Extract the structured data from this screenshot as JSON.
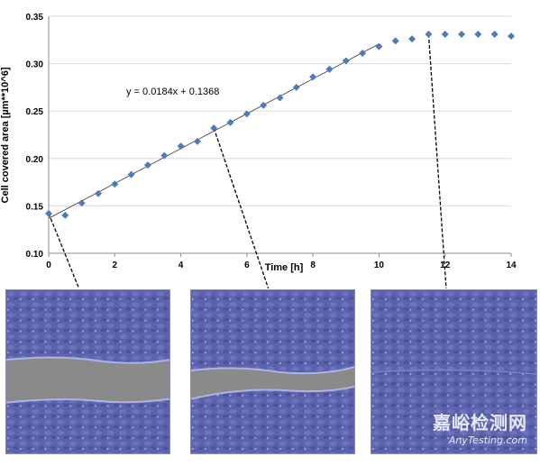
{
  "chart_data": {
    "type": "scatter",
    "xlabel": "Time [h]",
    "ylabel": "Cell covered area [µm**10^6]",
    "xlim": [
      0,
      14
    ],
    "ylim": [
      0.1,
      0.35
    ],
    "x_ticks": [
      "0",
      "2",
      "4",
      "6",
      "8",
      "10",
      "12",
      "14"
    ],
    "y_ticks": [
      "0.10",
      "0.15",
      "0.20",
      "0.25",
      "0.30",
      "0.35"
    ],
    "grid": "horizontal",
    "marker": "diamond",
    "marker_color": "#4a7ebb",
    "trendline": {
      "slope": 0.0184,
      "intercept": 0.1368,
      "x_range": [
        0,
        10
      ],
      "equation_label": "y = 0.0184x + 0.1368"
    },
    "series": [
      {
        "x": [
          0,
          0.5,
          1,
          1.5,
          2,
          2.5,
          3,
          3.5,
          4,
          4.5,
          5,
          5.5,
          6,
          6.5,
          7,
          7.5,
          8,
          8.5,
          9,
          9.5,
          10,
          10.5,
          11,
          11.5,
          12,
          12.5,
          13,
          13.5,
          14
        ],
        "values": [
          0.142,
          0.14,
          0.153,
          0.163,
          0.173,
          0.183,
          0.193,
          0.203,
          0.213,
          0.218,
          0.232,
          0.238,
          0.247,
          0.256,
          0.264,
          0.275,
          0.286,
          0.294,
          0.303,
          0.311,
          0.318,
          0.324,
          0.326,
          0.331,
          0.331,
          0.331,
          0.331,
          0.331,
          0.329
        ]
      }
    ],
    "callouts": [
      {
        "from_x": 0,
        "from_y": 0.142,
        "to_panel": 0
      },
      {
        "from_x": 5,
        "from_y": 0.232,
        "to_panel": 1
      },
      {
        "from_x": 11.5,
        "from_y": 0.331,
        "to_panel": 2
      }
    ]
  },
  "colors": {
    "cells": "#5b63ad",
    "wound": "#8a8a8a",
    "gridline": "#d9d9d9",
    "axis": "#8c8c8c"
  },
  "watermark": {
    "main": "嘉峪检测网",
    "sub": "AnyTesting.com"
  }
}
